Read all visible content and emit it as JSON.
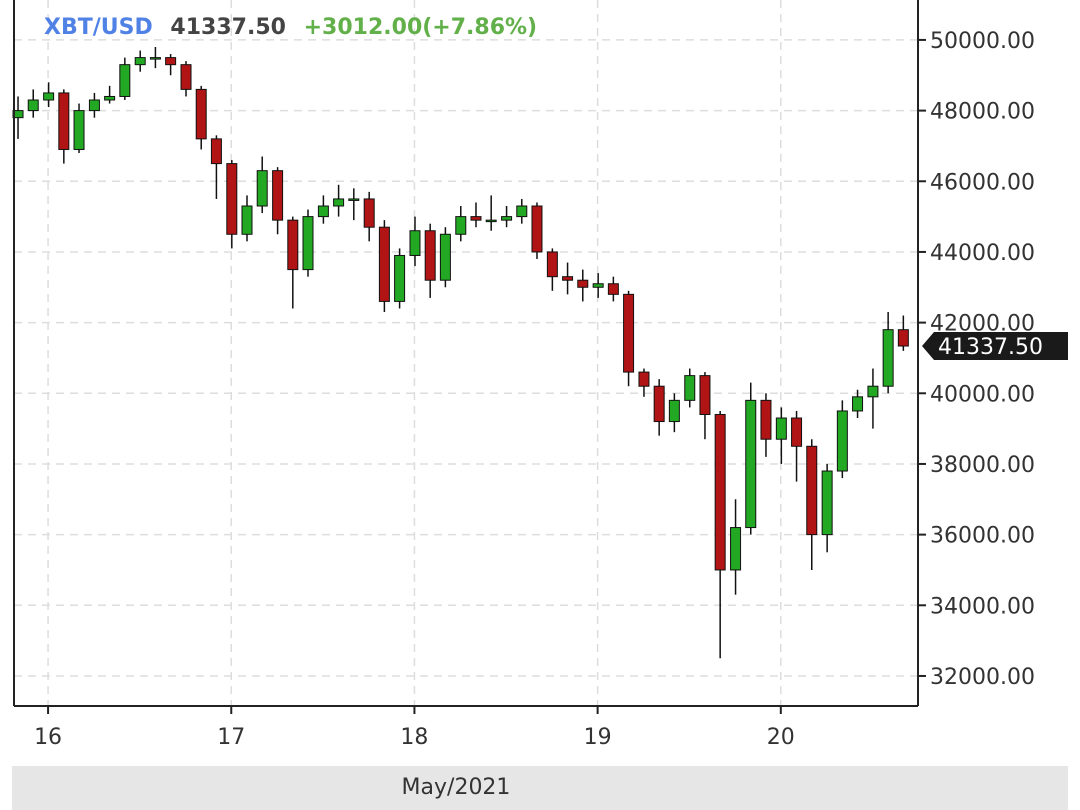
{
  "chart_data": {
    "type": "candlestick",
    "symbol": "XBT/USD",
    "last_price_label": "41337.50",
    "change_label": "+3012.00(+7.86%)",
    "xlabel": "May/2021",
    "x": [
      15.836,
      15.919,
      16.003,
      16.086,
      16.169,
      16.253,
      16.336,
      16.419,
      16.503,
      16.586,
      16.669,
      16.753,
      16.836,
      16.919,
      17.003,
      17.086,
      17.169,
      17.253,
      17.336,
      17.419,
      17.503,
      17.586,
      17.669,
      17.753,
      17.836,
      17.919,
      18.003,
      18.086,
      18.169,
      18.253,
      18.336,
      18.419,
      18.503,
      18.586,
      18.669,
      18.753,
      18.836,
      18.919,
      19.003,
      19.086,
      19.169,
      19.253,
      19.336,
      19.419,
      19.503,
      19.586,
      19.669,
      19.753,
      19.836,
      19.919,
      20.003,
      20.086,
      20.169,
      20.253,
      20.336,
      20.419,
      20.503,
      20.586,
      20.669
    ],
    "open": [
      47800,
      48000,
      48300,
      48500,
      46900,
      48000,
      48300,
      48400,
      49300,
      49500,
      49500,
      49300,
      48600,
      47200,
      46500,
      44500,
      45300,
      46300,
      44900,
      43500,
      45000,
      45300,
      45500,
      45500,
      44700,
      42600,
      43900,
      44600,
      43200,
      44500,
      45000,
      44900,
      44900,
      45000,
      45300,
      44000,
      43300,
      43200,
      43000,
      43100,
      42800,
      40600,
      40200,
      39200,
      39800,
      40500,
      39400,
      35000,
      36200,
      39800,
      38700,
      39300,
      38500,
      36000,
      37800,
      39500,
      39900,
      40200,
      41800
    ],
    "high": [
      48400,
      48600,
      48800,
      48600,
      48200,
      48500,
      48700,
      49500,
      49700,
      49800,
      49600,
      49400,
      48700,
      47300,
      46600,
      45600,
      46700,
      46400,
      45000,
      45200,
      45600,
      45900,
      45800,
      45700,
      44900,
      44100,
      45000,
      44800,
      44700,
      45300,
      45400,
      45600,
      45300,
      45500,
      45400,
      44100,
      43700,
      43500,
      43400,
      43300,
      42900,
      40700,
      40400,
      40000,
      40700,
      40600,
      39500,
      37000,
      40300,
      40000,
      39600,
      39500,
      38700,
      38000,
      39800,
      40100,
      40700,
      42300,
      42200
    ],
    "low": [
      47200,
      47800,
      48100,
      46500,
      46800,
      47800,
      48200,
      48300,
      49100,
      49200,
      49000,
      48400,
      46900,
      45500,
      44100,
      44300,
      45100,
      44500,
      42400,
      43300,
      44800,
      45000,
      44900,
      44300,
      42300,
      42400,
      43600,
      42700,
      43000,
      44300,
      44700,
      44600,
      44700,
      44800,
      43800,
      42900,
      42800,
      42600,
      42700,
      42600,
      40200,
      39900,
      38800,
      38900,
      39600,
      38700,
      32500,
      34300,
      36000,
      38200,
      38000,
      37500,
      35000,
      35500,
      37600,
      39300,
      39000,
      40000,
      41200
    ],
    "close": [
      48000,
      48300,
      48500,
      46900,
      48000,
      48300,
      48400,
      49300,
      49500,
      49500,
      49300,
      48600,
      47200,
      46500,
      44500,
      45300,
      46300,
      44900,
      43500,
      45000,
      45300,
      45500,
      45500,
      44700,
      42600,
      43900,
      44600,
      43200,
      44500,
      45000,
      44900,
      44900,
      45000,
      45300,
      44000,
      43300,
      43200,
      43000,
      43100,
      42800,
      40600,
      40200,
      39200,
      39800,
      40500,
      39400,
      35000,
      36200,
      39800,
      38700,
      39300,
      38500,
      36000,
      37800,
      39500,
      39900,
      40200,
      41800,
      41337.5
    ],
    "up_color": "#22a822",
    "down_color": "#b01414",
    "xlim": [
      15.814,
      20.749
    ],
    "xticks": [
      16,
      17,
      18,
      19,
      20
    ],
    "ylim": [
      31150,
      51130
    ],
    "yticks": [
      {
        "value": 32000,
        "label": "32000.00"
      },
      {
        "value": 34000,
        "label": "34000.00"
      },
      {
        "value": 36000,
        "label": "36000.00"
      },
      {
        "value": 38000,
        "label": "38000.00"
      },
      {
        "value": 40000,
        "label": "40000.00"
      },
      {
        "value": 42000,
        "label": "42000.00"
      },
      {
        "value": 44000,
        "label": "44000.00"
      },
      {
        "value": 46000,
        "label": "46000.00"
      },
      {
        "value": 48000,
        "label": "48000.00"
      },
      {
        "value": 50000,
        "label": "50000.00"
      }
    ],
    "grid": true
  }
}
